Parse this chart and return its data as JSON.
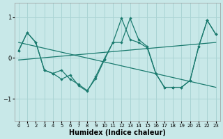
{
  "line1_x": [
    0,
    1,
    2,
    3,
    4,
    5,
    6,
    7,
    8,
    9,
    10,
    11,
    12,
    13,
    14,
    15,
    16,
    17,
    18,
    19,
    20,
    21,
    22,
    23
  ],
  "line1_y": [
    0.18,
    0.62,
    0.38,
    -0.3,
    -0.38,
    -0.52,
    -0.42,
    -0.68,
    -0.82,
    -0.45,
    -0.02,
    0.38,
    0.97,
    0.45,
    0.38,
    0.25,
    -0.38,
    -0.72,
    -0.72,
    -0.72,
    -0.55,
    0.28,
    0.92,
    0.58
  ],
  "line2_x": [
    0,
    1,
    2,
    3,
    4,
    5,
    6,
    7,
    8,
    9,
    10,
    11,
    12,
    13,
    14,
    15,
    16,
    17,
    18,
    19,
    20,
    21,
    22,
    23
  ],
  "line2_y": [
    0.18,
    0.62,
    0.38,
    -0.3,
    -0.38,
    -0.3,
    -0.52,
    -0.65,
    -0.8,
    -0.5,
    -0.05,
    0.38,
    0.38,
    0.97,
    0.45,
    0.28,
    -0.38,
    -0.72,
    -0.72,
    -0.72,
    -0.55,
    0.28,
    0.92,
    0.58
  ],
  "trend1_x": [
    0,
    23
  ],
  "trend1_y": [
    0.38,
    -0.72
  ],
  "trend2_x": [
    0,
    23
  ],
  "trend2_y": [
    -0.05,
    0.38
  ],
  "color": "#1a7a6e",
  "bg_color": "#c8e8e8",
  "grid_color": "#aad4d4",
  "xlabel": "Humidex (Indice chaleur)",
  "xlim": [
    -0.5,
    23.5
  ],
  "ylim": [
    -1.55,
    1.35
  ],
  "yticks": [
    -1,
    0,
    1
  ],
  "xticks": [
    0,
    1,
    2,
    3,
    4,
    5,
    6,
    7,
    8,
    9,
    10,
    11,
    12,
    13,
    14,
    15,
    16,
    17,
    18,
    19,
    20,
    21,
    22,
    23
  ]
}
